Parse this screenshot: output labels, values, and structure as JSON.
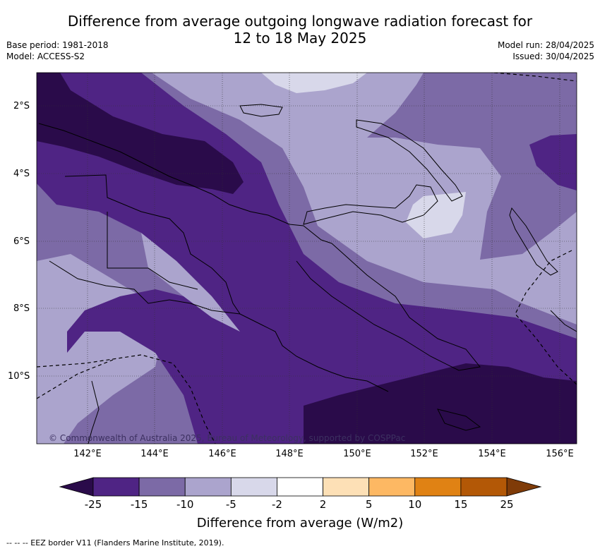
{
  "title": {
    "line1": "Difference from average outgoing longwave radiation forecast for",
    "line2": "12 to 18 May 2025"
  },
  "meta": {
    "base_period": "Base period: 1981-2018",
    "model": "Model: ACCESS-S2",
    "model_run": "Model run: 28/04/2025",
    "issued": "Issued: 30/04/2025"
  },
  "map": {
    "lat_labels": [
      "2°S",
      "4°S",
      "6°S",
      "8°S",
      "10°S"
    ],
    "lon_labels": [
      "142°E",
      "144°E",
      "146°E",
      "148°E",
      "150°E",
      "152°E",
      "154°E",
      "156°E"
    ],
    "copyright": "© Commonwealth of Australia 2025, Bureau of Meteorology, supported by COSPPac",
    "colors": {
      "lt_-25": "#2a0b4a",
      "-25_-15": "#4f2484",
      "-15_-10": "#7c6aa6",
      "-10_-5": "#aba4cd",
      "-5_-2": "#d8d8ea"
    }
  },
  "colorbar": {
    "title": "Difference from average (W/m2)",
    "ticks": [
      "-25",
      "-15",
      "-10",
      "-5",
      "-2",
      "2",
      "5",
      "10",
      "15",
      "25"
    ],
    "colors": [
      "#4f2484",
      "#7c6aa6",
      "#aba4cd",
      "#d8d8ea",
      "#ffffff",
      "#fde0b6",
      "#fdb863",
      "#e08214",
      "#b35806"
    ],
    "under_color": "#2a0b4a",
    "over_color": "#7f3b08"
  },
  "footnote": "--  --  -- EEZ border V11 (Flanders Marine Institute, 2019)."
}
